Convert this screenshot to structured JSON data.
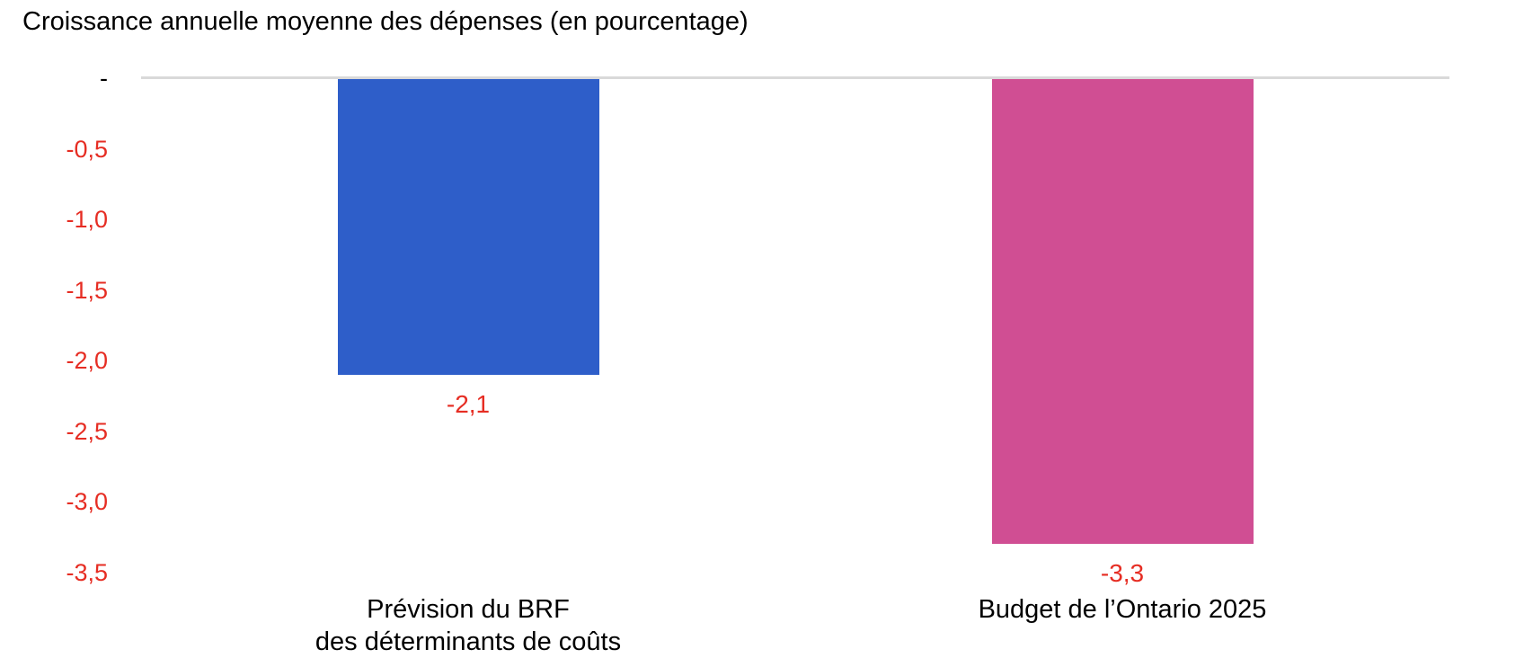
{
  "chart_data": {
    "type": "bar",
    "title": "Croissance annuelle moyenne des dépenses (en pourcentage)",
    "categories": [
      "Prévision du BRF\ndes déterminants de coûts",
      "Budget de l’Ontario 2025"
    ],
    "values": [
      -2.1,
      -3.3
    ],
    "value_labels": [
      "-2,1",
      "-3,3"
    ],
    "bar_colors": [
      "#2E5EC9",
      "#D04E93"
    ],
    "xlabel": "",
    "ylabel": "",
    "ylim": [
      -3.5,
      0
    ],
    "yticks": [
      0,
      -0.5,
      -1,
      -1.5,
      -2,
      -2.5,
      -3,
      -3.5
    ],
    "ytick_labels": [
      "-",
      "-0,5",
      "-1,0",
      "-1,5",
      "-2,0",
      "-2,5",
      "-3,0",
      "-3,5"
    ],
    "grid": false,
    "legend": false
  },
  "colors": {
    "title": "#000000",
    "axis_line": "#D9D9D9",
    "tick_label": "#E62D23",
    "zero_tick_label": "#000000",
    "value_label": "#E62D23",
    "category_label": "#000000"
  }
}
